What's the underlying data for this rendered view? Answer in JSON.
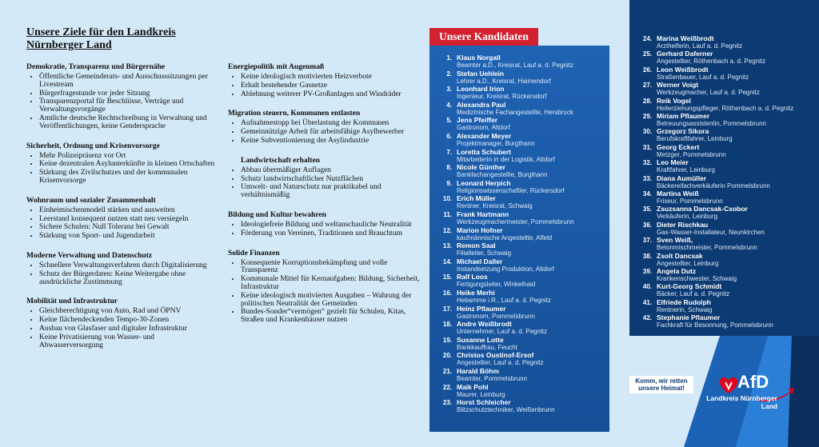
{
  "heading": "Unsere Ziele für den Landkreis Nürnberger Land",
  "columns": [
    [
      {
        "title": "Demokratie, Transparenz und Bürgernähe",
        "items": [
          "Öffentliche Gemeinderats- und Ausschusssitzungen per Livestream",
          "Bürgerfragestunde vor jeder Sitzung",
          "Transparenzportal für Beschlüsse, Verträge und Verwaltungsvorgänge",
          "Amtliche deutsche Rechtschreibung in Verwaltung und Veröffentlichungen, keine Gendersprache"
        ]
      },
      {
        "title": "Sicherheit, Ordnung und Krisenvorsorge",
        "items": [
          "Mehr Polizeipräsenz vor Ort",
          "Keine dezentralen Asylunterkünfte in kleinen Ortschaften",
          "Stärkung des Zivilschutzes und der kommunalen Krisenvorsorge"
        ]
      },
      {
        "title": "Wohnraum und sozialer Zusammenhalt",
        "items": [
          "Einheimischenmodell stärken und ausweiten",
          "Leerstand konsequent nutzen statt neu versiegeln",
          "Sichere Schulen: Null Toleranz bei Gewalt",
          "Stärkung von Sport- und Jugendarbeit"
        ]
      },
      {
        "title": "Moderne Verwaltung und Datenschutz",
        "items": [
          "Schnellere Verwaltungsverfahren durch Digitalisierung",
          "Schutz der Bürgerdaten: Keine Weitergabe ohne ausdrückliche Zustimmung"
        ]
      },
      {
        "title": "Mobilität und Infrastruktur",
        "items": [
          "Gleichberechtigung von Auto, Rad und ÖPNV",
          "Keine flächendeckenden Tempo-30-Zonen",
          "Ausbau von Glasfaser und digitaler Infrastruktur",
          "Keine Privatisierung von Wasser- und Abwasserversorgung"
        ]
      }
    ],
    [
      {
        "title": "Energiepolitik mit Augenmaß",
        "items": [
          "Keine ideologisch motivierten Heizverbote",
          "Erhalt bestehender Gasnetze",
          "Ablehnung weiterer PV-Großanlagen und Windräder"
        ]
      },
      {
        "title": "Migration steuern, Kommunen entlasten",
        "items": [
          "Aufnahmestopp bei Überlastung der Kommunen",
          "Gemeinnützige Arbeit für arbeitsfähige Asylbewerber",
          "Keine Subventionierung der Asylindustrie"
        ]
      },
      {
        "title": "Landwirtschaft erhalten",
        "items": [
          "Abbau übermäßiger Auflagen",
          "Schutz landwirtschaftlicher Nutzflächen",
          "Umwelt- und Naturschutz nur praktikabel und verhältnismäßig"
        ]
      },
      {
        "title": "Bildung und Kultur bewahren",
        "items": [
          "Ideologiefreie Bildung und weltanschauliche Neutralität",
          "Förderung von Vereinen, Traditionen und Brauchtum"
        ]
      },
      {
        "title": "Solide Finanzen",
        "items": [
          "Konsequente Korruptionsbekämpfung und volle Transparenz",
          "Kommunale Mittel für Kernaufgaben: Bildung, Sicherheit, Infrastruktur",
          "Keine ideologisch motivierten Ausgaben – Wahrung der politischen Neutralität der Gemeinden",
          "Bundes-Sonder“vermögen“ gezielt für Schulen, Kitas, Straßen und Krankenhäuser nutzen"
        ]
      }
    ]
  ],
  "candidates_title": "Unsere Kandidaten",
  "candidates": [
    {
      "number": "1.",
      "name": "Klaus Norgall",
      "desc": "Beamter a.D., Kreisrat, Lauf a. d. Pegnitz"
    },
    {
      "number": "2.",
      "name": "Stefan Uehlein",
      "desc": "Lehrer a.D., Kreisrat, Haimendorf"
    },
    {
      "number": "3.",
      "name": "Leonhard Irion",
      "desc": "Ingenieur, Kreisrat, Rückersdorf"
    },
    {
      "number": "4.",
      "name": "Alexandra Paul",
      "desc": "Medizinische Fachangestellte, Hersbruck"
    },
    {
      "number": "5.",
      "name": "Jens Pfeiffer",
      "desc": "Gastronom, Altdorf"
    },
    {
      "number": "6.",
      "name": "Alexander Meyer",
      "desc": "Projektmanager, Burgthann"
    },
    {
      "number": "7.",
      "name": "Loretta Schubert",
      "desc": "Mitarbeiterin in der Logistik, Altdorf"
    },
    {
      "number": "8.",
      "name": "Nicole Günther",
      "desc": "Bankfachangestellte, Burgthann"
    },
    {
      "number": "9.",
      "name": "Leonard Herpich",
      "desc": "Religionswissenschaftler, Rückersdorf"
    },
    {
      "number": "10.",
      "name": "Erich Müller",
      "desc": "Rentner, Kreisrat, Schwaig"
    },
    {
      "number": "11.",
      "name": "Frank Hartmann",
      "desc": "Werkzeugmachermeister, Pommelsbrunn"
    },
    {
      "number": "12.",
      "name": "Marion Hofner",
      "desc": "kaufmännische Angestellte, Alfeld"
    },
    {
      "number": "13.",
      "name": "Remon Saal",
      "desc": "Filialleiter, Schwaig"
    },
    {
      "number": "14.",
      "name": "Michael Daller",
      "desc": "Instandsetzung Produktion, Altdorf"
    },
    {
      "number": "15.",
      "name": "Ralf Loos",
      "desc": "Fertigungsleiter, Winkelhaid"
    },
    {
      "number": "16.",
      "name": "Heike Merhi",
      "desc": "Hebamme i.R., Lauf a. d. Pegnitz"
    },
    {
      "number": "17.",
      "name": "Heinz Pflaumer",
      "desc": "Gastronom, Pommelsbrunn"
    },
    {
      "number": "18.",
      "name": "Andre Weißbrodt",
      "desc": "Unternehmer, Lauf a. d. Pegnitz"
    },
    {
      "number": "19.",
      "name": "Susanne Lotte",
      "desc": "Bankkauffrau, Feucht"
    },
    {
      "number": "20.",
      "name": "Christos Oustinof-Ersof",
      "desc": "Angestellter, Lauf a. d. Pegnitz"
    },
    {
      "number": "21.",
      "name": "Harald Böhm",
      "desc": "Beamter, Pommelsbrunn"
    },
    {
      "number": "22.",
      "name": "Maik Pohl",
      "desc": "Maurer, Leinburg"
    },
    {
      "number": "23.",
      "name": "Horst Schleicher",
      "desc": "Blitzschutztechniker, Weißenbrunn"
    },
    {
      "number": "24.",
      "name": "Marina Weißbrodt",
      "desc": "Arzthelferin, Lauf a. d. Pegnitz"
    },
    {
      "number": "25.",
      "name": "Gerhard Daferner",
      "desc": "Angestellter, Röthenbach a. d. Pegnitz"
    },
    {
      "number": "26.",
      "name": "Leon Weißbrodt",
      "desc": "Straßenbauer, Lauf a. d. Pegnitz"
    },
    {
      "number": "27.",
      "name": "Werner Voigt",
      "desc": "Werkzeugmacher, Lauf a. d. Pegnitz"
    },
    {
      "number": "28.",
      "name": "Reik Vogel",
      "desc": "Heilerziehungspfleger, Röthenbach a. d. Pegnitz"
    },
    {
      "number": "29.",
      "name": "Miriam Pflaumer",
      "desc": "Betreuungsassistentin, Pommelsbrunn"
    },
    {
      "number": "30.",
      "name": "Grzegorz Sikora",
      "desc": "Berufskraftfahrer, Leinburg"
    },
    {
      "number": "31.",
      "name": "Georg Eckert",
      "desc": "Metzger, Pommelsbrunn"
    },
    {
      "number": "32.",
      "name": "Leo Meier",
      "desc": "Kraftfahrer, Leinburg"
    },
    {
      "number": "33.",
      "name": "Diana Aumüller",
      "desc": "Bäckereifachverkäuferin Pommelsbrunn"
    },
    {
      "number": "34.",
      "name": "Martina Weiß",
      "desc": "Friseur, Pommelsbrunn"
    },
    {
      "number": "35.",
      "name": "Zsuzsanna Dancsak-Csobor",
      "desc": "Verkäuferin, Leinburg"
    },
    {
      "number": "36.",
      "name": "Dieter Rischkau",
      "desc": "Gas-Wasser-Installateur, Neunkirchen"
    },
    {
      "number": "37.",
      "name": "Sven Weiß,",
      "desc": "Betonmischmeister, Pommelsbrunn"
    },
    {
      "number": "38.",
      "name": "Zsolt Dancsak",
      "desc": "Angestellter, Leinburg"
    },
    {
      "number": "39.",
      "name": "Angela Dutz",
      "desc": "Krankenschwester, Schwaig"
    },
    {
      "number": "40.",
      "name": "Kurt-Georg Schmidt",
      "desc": "Bäcker, Lauf a. d. Pegnitz"
    },
    {
      "number": "41.",
      "name": "Elfriede Rudolph",
      "desc": "Rentnerin, Schwaig"
    },
    {
      "number": "42.",
      "name": "Stephanie Pflaumer",
      "desc": "Fachkraft für Besonnung, Pommelsbrunn"
    }
  ],
  "slogan": "Komm, wir retten unsere Heimat!",
  "logo": {
    "text": "AfD",
    "region": "Landkreis Nürnberger Land"
  }
}
